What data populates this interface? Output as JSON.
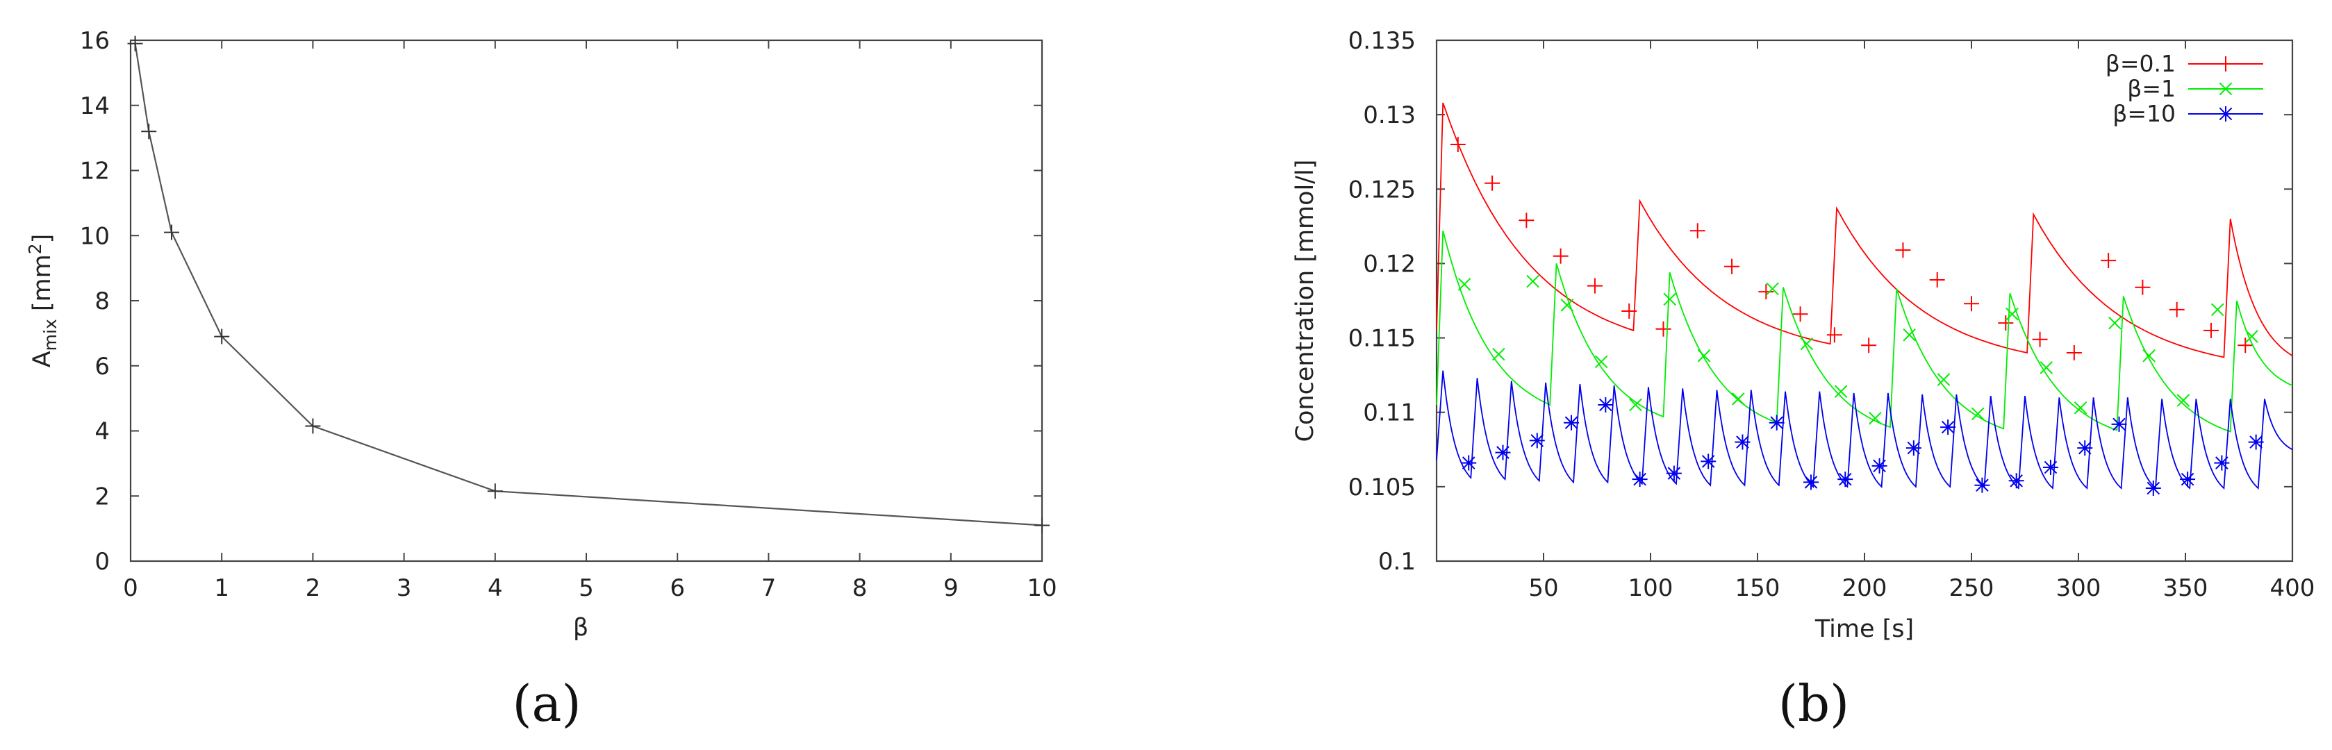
{
  "chart_data": [
    {
      "type": "line",
      "caption": "(a)",
      "xlabel": "β",
      "ylabel_main": "A",
      "ylabel_sub": "mix",
      "ylabel_unit_pre": " [mm",
      "ylabel_unit_sup": "2",
      "ylabel_unit_post": "]",
      "xlim": [
        0,
        10
      ],
      "ylim": [
        0,
        16
      ],
      "xticks": [
        0,
        1,
        2,
        3,
        4,
        5,
        6,
        7,
        8,
        9,
        10
      ],
      "yticks": [
        0,
        2,
        4,
        6,
        8,
        10,
        12,
        14,
        16
      ],
      "grid": false,
      "color": "#555555",
      "marker": "plus",
      "series": [
        {
          "x": [
            0.05,
            0.2,
            0.45,
            1,
            2,
            4,
            10
          ],
          "y": [
            15.9,
            13.2,
            10.1,
            6.9,
            4.15,
            2.15,
            1.1
          ]
        }
      ]
    },
    {
      "type": "line",
      "caption": "(b)",
      "xlabel": "Time [s]",
      "ylabel": "Concentration [mmol/l]",
      "xlim": [
        0,
        400
      ],
      "ylim": [
        0.1,
        0.135
      ],
      "xticks": [
        50,
        100,
        150,
        200,
        250,
        300,
        350,
        400
      ],
      "yticks": [
        0.1,
        0.105,
        0.11,
        0.115,
        0.12,
        0.125,
        0.13,
        0.135
      ],
      "ytick_labels": [
        "0.1",
        "0.105",
        "0.11",
        "0.115",
        "0.12",
        "0.125",
        "0.13",
        "0.135"
      ],
      "grid": false,
      "legend_position": "top-right",
      "series": [
        {
          "name": "β=0.1",
          "color": "#ff0000",
          "marker": "plus",
          "period": 92,
          "start_value": 0.1155,
          "peaks": [
            0.1308,
            0.1242,
            0.1237,
            0.1233,
            0.123
          ],
          "troughs": [
            0.1155,
            0.1146,
            0.114,
            0.1137
          ],
          "end_value": 0.1138,
          "marker_x": [
            10,
            26,
            42,
            58,
            74,
            90,
            106,
            122,
            138,
            154,
            170,
            186,
            202,
            218,
            234,
            250,
            266,
            282,
            298,
            314,
            330,
            346,
            362,
            378
          ],
          "marker_y": [
            0.128,
            0.1254,
            0.1229,
            0.1205,
            0.1185,
            0.1168,
            0.1156,
            0.1222,
            0.1198,
            0.1181,
            0.1166,
            0.1152,
            0.1145,
            0.1209,
            0.1189,
            0.1173,
            0.116,
            0.1149,
            0.114,
            0.1202,
            0.1184,
            0.1169,
            0.1155,
            0.1145
          ]
        },
        {
          "name": "β=1",
          "color": "#00ee00",
          "marker": "x",
          "period": 53,
          "start_value": 0.1105,
          "peaks": [
            0.1222,
            0.12,
            0.1194,
            0.1184,
            0.1183,
            0.118,
            0.1178,
            0.1175
          ],
          "troughs": [
            0.1105,
            0.1097,
            0.1093,
            0.109,
            0.1089,
            0.1088,
            0.1087
          ],
          "end_value": 0.1118,
          "marker_x": [
            13,
            29,
            45,
            61,
            77,
            93,
            109,
            125,
            141,
            157,
            173,
            189,
            205,
            221,
            237,
            253,
            269,
            285,
            301,
            317,
            333,
            349,
            365,
            381
          ],
          "marker_y": [
            0.1186,
            0.1139,
            0.1188,
            0.1172,
            0.1134,
            0.1105,
            0.1176,
            0.1138,
            0.1109,
            0.1183,
            0.1146,
            0.1114,
            0.1096,
            0.1152,
            0.1122,
            0.1099,
            0.1166,
            0.113,
            0.1103,
            0.116,
            0.1138,
            0.1108,
            0.1169,
            0.1151
          ]
        },
        {
          "name": "β=10",
          "color": "#0000ee",
          "marker": "star",
          "period": 16,
          "start_value": 0.1068,
          "peaks": [
            0.1128,
            0.1123,
            0.1121,
            0.112,
            0.1119,
            0.1118,
            0.1117,
            0.1116,
            0.1115,
            0.1115,
            0.1114,
            0.1114,
            0.1113,
            0.1113,
            0.1112,
            0.1112,
            0.1111,
            0.1111,
            0.111,
            0.111,
            0.111,
            0.1109,
            0.1109,
            0.1109,
            0.1109
          ],
          "troughs": [
            0.1056,
            0.1055,
            0.1054,
            0.1053,
            0.1053,
            0.1052,
            0.1052,
            0.1051,
            0.1051,
            0.1051,
            0.105,
            0.105,
            0.105,
            0.105,
            0.105,
            0.105,
            0.1049,
            0.1049,
            0.1049,
            0.1049,
            0.1049,
            0.1049,
            0.1049,
            0.1049
          ],
          "end_value": 0.1075,
          "marker_x": [
            15,
            31,
            47,
            63,
            79,
            95,
            111,
            127,
            143,
            159,
            175,
            191,
            207,
            223,
            239,
            255,
            271,
            287,
            303,
            319,
            335,
            351,
            367,
            383
          ],
          "marker_y": [
            0.1066,
            0.1073,
            0.1081,
            0.1093,
            0.1105,
            0.1055,
            0.1059,
            0.1067,
            0.108,
            0.1093,
            0.1053,
            0.1055,
            0.1064,
            0.1076,
            0.109,
            0.1051,
            0.1054,
            0.1063,
            0.1076,
            0.1092,
            0.1049,
            0.1055,
            0.1066,
            0.108
          ]
        }
      ]
    }
  ]
}
